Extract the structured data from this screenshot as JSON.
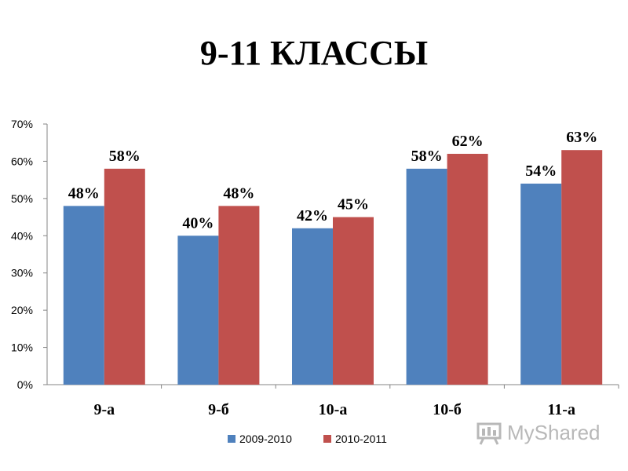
{
  "chart_data": {
    "type": "bar",
    "title": "9-11 КЛАССЫ",
    "categories": [
      "9-а",
      "9-б",
      "10-а",
      "10-б",
      "11-а"
    ],
    "series": [
      {
        "name": "2009-2010",
        "values": [
          48,
          40,
          42,
          58,
          54
        ],
        "labels": [
          "48%",
          "40%",
          "42%",
          "58%",
          "54%"
        ],
        "color": "#4F81BD"
      },
      {
        "name": "2010-2011",
        "values": [
          58,
          48,
          45,
          62,
          63
        ],
        "labels": [
          "58%",
          "48%",
          "45%",
          "62%",
          "63%"
        ],
        "color": "#C0504D"
      }
    ],
    "ylim": [
      0,
      70
    ],
    "yticks": [
      0,
      10,
      20,
      30,
      40,
      50,
      60,
      70
    ],
    "ytick_labels": [
      "0%",
      "10%",
      "20%",
      "30%",
      "40%",
      "50%",
      "60%",
      "70%"
    ],
    "xlabel": "",
    "ylabel": "",
    "grid": false,
    "legend_position": "bottom"
  },
  "watermark": {
    "text": "MyShared",
    "icon": "presentation-board-icon"
  }
}
